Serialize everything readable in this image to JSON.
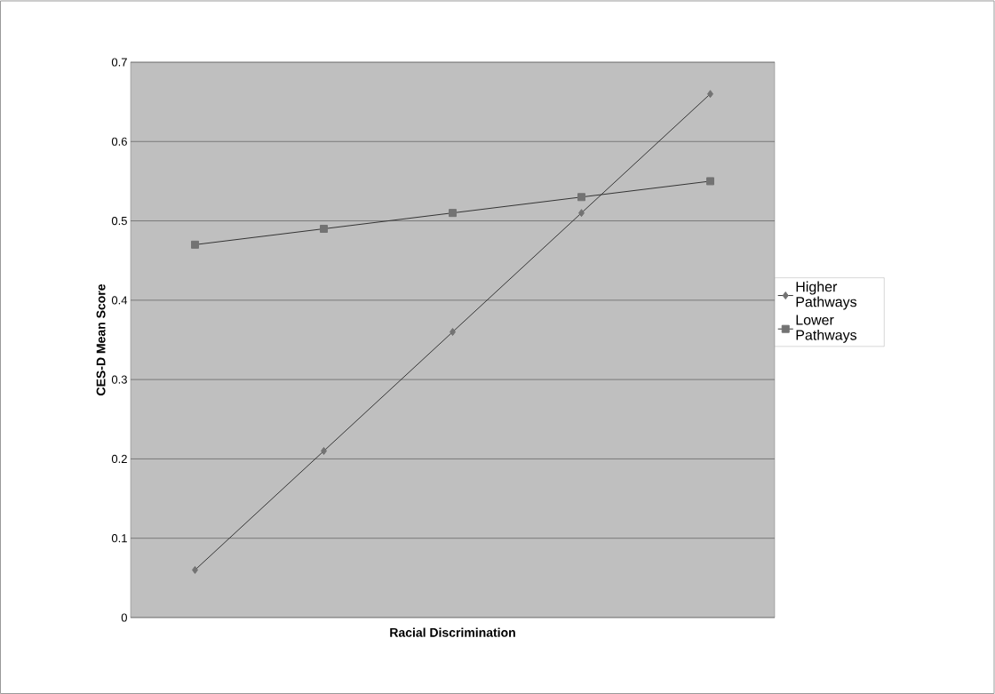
{
  "chart_data": {
    "type": "line",
    "xlabel": "Racial Discrimination",
    "ylabel": "CES-D Mean Score",
    "categories": [
      null,
      null,
      null,
      null,
      null
    ],
    "series": [
      {
        "name": "Higher Pathways",
        "color": "#333333",
        "marker": "diamond",
        "values": [
          0.06,
          0.21,
          0.36,
          0.51,
          0.66
        ]
      },
      {
        "name": "Lower Pathways",
        "color": "#333333",
        "marker": "square",
        "values": [
          0.47,
          0.49,
          0.51,
          0.53,
          0.55
        ]
      }
    ],
    "ylim": [
      0,
      0.7
    ],
    "yticks": [
      0,
      0.1,
      0.2,
      0.3,
      0.4,
      0.5,
      0.6,
      0.7
    ],
    "grid": "y",
    "legend": "right"
  }
}
